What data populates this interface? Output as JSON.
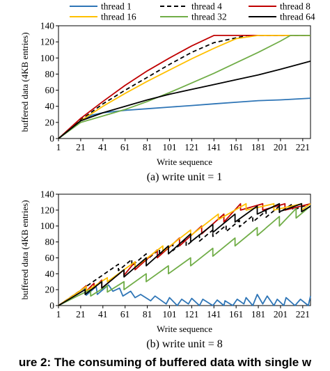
{
  "legend": [
    {
      "name": "thread 1",
      "color": "#2E75B6",
      "dash": "none"
    },
    {
      "name": "thread 4",
      "color": "#000000",
      "dash": "6,4"
    },
    {
      "name": "thread 8",
      "color": "#C00000",
      "dash": "none"
    },
    {
      "name": "thread 16",
      "color": "#FFC000",
      "dash": "none"
    },
    {
      "name": "thread 32",
      "color": "#70AD47",
      "dash": "none"
    },
    {
      "name": "thread 64",
      "color": "#000000",
      "dash": "none"
    }
  ],
  "figure_caption": "ure 2: The consuming of buffered data with single w",
  "chart_data": [
    {
      "type": "line",
      "caption": "(a) write unit = 1",
      "xlabel": "Write sequence",
      "ylabel": "buffered data (4KB entries)",
      "xlim": [
        1,
        228
      ],
      "ylim": [
        0,
        140
      ],
      "xticks": [
        1,
        21,
        41,
        61,
        81,
        101,
        121,
        141,
        161,
        181,
        201,
        221
      ],
      "yticks": [
        0,
        20,
        40,
        60,
        80,
        100,
        120,
        140
      ],
      "grid": false,
      "legend_position": "top",
      "series": [
        {
          "name": "thread 1",
          "x": [
            1,
            6,
            11,
            21,
            31,
            41,
            61,
            81,
            101,
            121,
            141,
            161,
            181,
            201,
            228
          ],
          "y": [
            0,
            6,
            12,
            22,
            29,
            32,
            35,
            37,
            39,
            41,
            43,
            45,
            47,
            48,
            50
          ]
        },
        {
          "name": "thread 4",
          "x": [
            1,
            21,
            41,
            61,
            81,
            101,
            121,
            141,
            161,
            171,
            228
          ],
          "y": [
            0,
            23,
            43,
            60,
            76,
            92,
            107,
            119,
            125,
            128,
            128
          ]
        },
        {
          "name": "thread 8",
          "x": [
            1,
            21,
            41,
            61,
            81,
            101,
            121,
            141,
            148,
            228
          ],
          "y": [
            0,
            25,
            46,
            66,
            84,
            100,
            115,
            128,
            128,
            128
          ]
        },
        {
          "name": "thread 16",
          "x": [
            1,
            21,
            41,
            61,
            81,
            101,
            121,
            141,
            161,
            181,
            228
          ],
          "y": [
            0,
            22,
            40,
            56,
            71,
            85,
            99,
            112,
            124,
            128,
            128
          ]
        },
        {
          "name": "thread 32",
          "x": [
            1,
            21,
            41,
            61,
            81,
            101,
            121,
            141,
            161,
            181,
            201,
            210,
            228
          ],
          "y": [
            0,
            20,
            28,
            36,
            46,
            57,
            69,
            81,
            94,
            107,
            121,
            128,
            128
          ]
        },
        {
          "name": "thread 64",
          "x": [
            1,
            21,
            41,
            61,
            81,
            101,
            121,
            141,
            161,
            181,
            201,
            228
          ],
          "y": [
            0,
            22,
            32,
            40,
            48,
            55,
            61,
            67,
            73,
            79,
            86,
            96
          ]
        }
      ]
    },
    {
      "type": "line",
      "caption": "(b) write unit = 8",
      "xlabel": "Write sequence",
      "ylabel": "buffered data (4KB entries)",
      "xlim": [
        1,
        228
      ],
      "ylim": [
        0,
        140
      ],
      "xticks": [
        1,
        21,
        41,
        61,
        81,
        101,
        121,
        141,
        161,
        181,
        201,
        221
      ],
      "yticks": [
        0,
        20,
        40,
        60,
        80,
        100,
        120,
        140
      ],
      "grid": false,
      "series": [
        {
          "name": "thread 1",
          "x": [
            1,
            20,
            25,
            26,
            35,
            36,
            46,
            50,
            56,
            59,
            66,
            70,
            75,
            84,
            88,
            98,
            101,
            108,
            112,
            118,
            121,
            128,
            131,
            140,
            144,
            150,
            151,
            158,
            162,
            168,
            170,
            176,
            180,
            185,
            189,
            195,
            198,
            204,
            206,
            214,
            219,
            226,
            228
          ],
          "y": [
            0,
            18,
            22,
            13,
            24,
            14,
            26,
            18,
            22,
            12,
            18,
            10,
            14,
            6,
            12,
            2,
            10,
            0,
            8,
            2,
            9,
            0,
            8,
            0,
            7,
            0,
            6,
            0,
            8,
            2,
            10,
            0,
            14,
            2,
            12,
            0,
            8,
            0,
            10,
            0,
            8,
            0,
            12
          ]
        },
        {
          "name": "thread 4",
          "x": [
            1,
            55,
            55,
            67,
            67,
            80,
            80,
            92,
            92,
            104,
            104,
            116,
            116,
            128,
            128,
            140,
            140,
            152,
            152,
            164,
            164,
            176,
            176,
            188,
            188,
            200,
            200,
            212,
            212,
            228
          ],
          "y": [
            0,
            52,
            44,
            58,
            50,
            65,
            57,
            71,
            63,
            77,
            69,
            83,
            75,
            89,
            81,
            95,
            87,
            101,
            93,
            107,
            99,
            113,
            105,
            119,
            111,
            125,
            117,
            128,
            120,
            128
          ]
        },
        {
          "name": "thread 8",
          "x": [
            1,
            20,
            26,
            26,
            33,
            33,
            40,
            40,
            60,
            60,
            70,
            70,
            90,
            90,
            110,
            110,
            130,
            130,
            150,
            150,
            165,
            165,
            185,
            185,
            205,
            205,
            228
          ],
          "y": [
            0,
            18,
            25,
            18,
            28,
            22,
            32,
            22,
            45,
            38,
            55,
            45,
            70,
            60,
            85,
            75,
            100,
            90,
            115,
            105,
            128,
            120,
            128,
            120,
            128,
            120,
            128
          ]
        },
        {
          "name": "thread 16",
          "x": [
            1,
            20,
            26,
            26,
            45,
            45,
            70,
            70,
            95,
            95,
            120,
            120,
            145,
            145,
            170,
            170,
            195,
            195,
            220,
            220,
            228
          ],
          "y": [
            0,
            18,
            24,
            18,
            35,
            30,
            55,
            48,
            75,
            68,
            95,
            88,
            115,
            108,
            128,
            120,
            128,
            120,
            128,
            120,
            128
          ]
        },
        {
          "name": "thread 32",
          "x": [
            1,
            18,
            18,
            30,
            30,
            45,
            45,
            60,
            60,
            80,
            80,
            100,
            100,
            120,
            120,
            140,
            140,
            160,
            160,
            180,
            180,
            200,
            200,
            215,
            215,
            228
          ],
          "y": [
            0,
            12,
            12,
            20,
            12,
            25,
            17,
            30,
            20,
            40,
            30,
            50,
            40,
            60,
            50,
            72,
            62,
            85,
            75,
            98,
            88,
            112,
            100,
            122,
            110,
            125
          ]
        },
        {
          "name": "thread 64",
          "x": [
            1,
            25,
            25,
            40,
            40,
            60,
            60,
            80,
            80,
            100,
            100,
            120,
            120,
            140,
            140,
            160,
            160,
            180,
            180,
            200,
            200,
            220,
            220,
            228
          ],
          "y": [
            0,
            20,
            14,
            30,
            22,
            45,
            36,
            60,
            50,
            75,
            65,
            90,
            80,
            102,
            92,
            115,
            105,
            125,
            115,
            128,
            118,
            128,
            118,
            125
          ]
        }
      ]
    }
  ]
}
